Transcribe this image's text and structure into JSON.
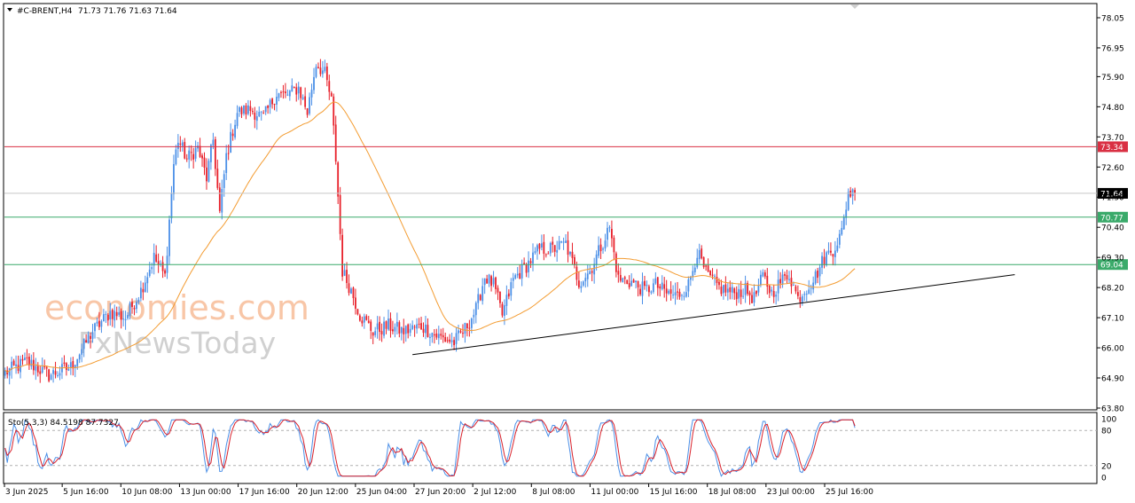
{
  "header": {
    "symbol": "#C-BRENT,H4",
    "ohlc": "71.73 71.76 71.63 71.64"
  },
  "watermark": {
    "line1": "economies.com",
    "line2": "FxNewsToday"
  },
  "oscillator": {
    "label": "Sto(5,3,3) 84.5198 87.7327",
    "ticks": [
      "100",
      "80",
      "20",
      "0"
    ]
  },
  "colors": {
    "bull": "#4a8fe7",
    "bear": "#e8202a",
    "ma": "#f39c32",
    "resistance": "#d93043",
    "current": "#000000",
    "support": "#3aaa6a",
    "trendline": "#000000",
    "stoch_main": "#4a8fe7",
    "stoch_signal": "#d9202a"
  },
  "chart_data": [
    {
      "type": "candlestick",
      "symbol": "#C-BRENT",
      "timeframe": "H4",
      "x_ticks": [
        "3 Jun 2025",
        "5 Jun 16:00",
        "10 Jun 08:00",
        "13 Jun 00:00",
        "17 Jun 16:00",
        "20 Jun 12:00",
        "25 Jun 04:00",
        "27 Jun 20:00",
        "2 Jul 12:00",
        "8 Jul 08:00",
        "11 Jul 00:00",
        "15 Jul 16:00",
        "18 Jul 08:00",
        "23 Jul 00:00",
        "25 Jul 16:00"
      ],
      "y_ticks": [
        "78.05",
        "76.95",
        "75.90",
        "74.80",
        "73.70",
        "72.60",
        "71.50",
        "70.40",
        "69.30",
        "68.20",
        "67.10",
        "66.00",
        "64.90",
        "63.80"
      ],
      "ylim": [
        63.8,
        78.05
      ],
      "price_close_path": [
        [
          0,
          65.1
        ],
        [
          10,
          65.5
        ],
        [
          20,
          65.0
        ],
        [
          30,
          65.3
        ],
        [
          40,
          66.6
        ],
        [
          48,
          67.3
        ],
        [
          55,
          67.1
        ],
        [
          62,
          68.1
        ],
        [
          68,
          69.3
        ],
        [
          73,
          68.6
        ],
        [
          77,
          72.7
        ],
        [
          79,
          73.6
        ],
        [
          83,
          72.9
        ],
        [
          88,
          73.3
        ],
        [
          92,
          72.2
        ],
        [
          95,
          73.6
        ],
        [
          98,
          70.9
        ],
        [
          101,
          73.0
        ],
        [
          106,
          74.6
        ],
        [
          112,
          74.7
        ],
        [
          118,
          74.4
        ],
        [
          124,
          75.3
        ],
        [
          128,
          75.2
        ],
        [
          134,
          75.5
        ],
        [
          138,
          74.6
        ],
        [
          142,
          76.4
        ],
        [
          146,
          76.0
        ],
        [
          149,
          75.0
        ],
        [
          151,
          72.9
        ],
        [
          154,
          68.8
        ],
        [
          158,
          68.1
        ],
        [
          162,
          67.2
        ],
        [
          168,
          66.6
        ],
        [
          175,
          66.8
        ],
        [
          182,
          66.6
        ],
        [
          190,
          66.8
        ],
        [
          198,
          66.4
        ],
        [
          205,
          66.2
        ],
        [
          210,
          66.7
        ],
        [
          215,
          67.4
        ],
        [
          219,
          68.6
        ],
        [
          223,
          68.3
        ],
        [
          227,
          67.2
        ],
        [
          232,
          68.5
        ],
        [
          238,
          69.0
        ],
        [
          244,
          69.6
        ],
        [
          250,
          69.6
        ],
        [
          256,
          69.8
        ],
        [
          262,
          68.4
        ],
        [
          267,
          68.8
        ],
        [
          272,
          69.7
        ],
        [
          276,
          70.4
        ],
        [
          280,
          68.5
        ],
        [
          286,
          68.4
        ],
        [
          292,
          68.1
        ],
        [
          297,
          68.3
        ],
        [
          302,
          68.0
        ],
        [
          307,
          67.9
        ],
        [
          312,
          68.3
        ],
        [
          316,
          69.5
        ],
        [
          320,
          68.7
        ],
        [
          326,
          68.2
        ],
        [
          332,
          68.0
        ],
        [
          338,
          68.1
        ],
        [
          342,
          67.8
        ],
        [
          346,
          68.6
        ],
        [
          350,
          68.0
        ],
        [
          354,
          68.4
        ],
        [
          358,
          68.7
        ],
        [
          362,
          67.8
        ],
        [
          366,
          68.2
        ],
        [
          370,
          68.6
        ],
        [
          374,
          69.3
        ],
        [
          378,
          69.6
        ],
        [
          382,
          70.2
        ],
        [
          385,
          71.7
        ],
        [
          388,
          71.6
        ]
      ],
      "bars_total": 389,
      "indicators": [
        {
          "name": "Moving Average",
          "type": "line",
          "color": "#f39c32"
        }
      ],
      "horizontal_levels": [
        {
          "value": 73.34,
          "label": "73.34",
          "color": "#d93043"
        },
        {
          "value": 71.64,
          "label": "71.64",
          "color": "#000000"
        },
        {
          "value": 70.77,
          "label": "70.77",
          "color": "#3aaa6a"
        },
        {
          "value": 69.04,
          "label": "69.04",
          "color": "#3aaa6a"
        }
      ],
      "trendline": {
        "from": [
          186,
          65.75
        ],
        "to": [
          461,
          68.67
        ]
      },
      "grid": false
    },
    {
      "type": "line",
      "name": "Sto(5,3,3)",
      "values": [
        84.5198,
        87.7327
      ],
      "ylim": [
        0,
        100
      ],
      "levels": [
        20,
        80
      ],
      "series": [
        {
          "name": "%K"
        },
        {
          "name": "%D"
        }
      ]
    }
  ]
}
